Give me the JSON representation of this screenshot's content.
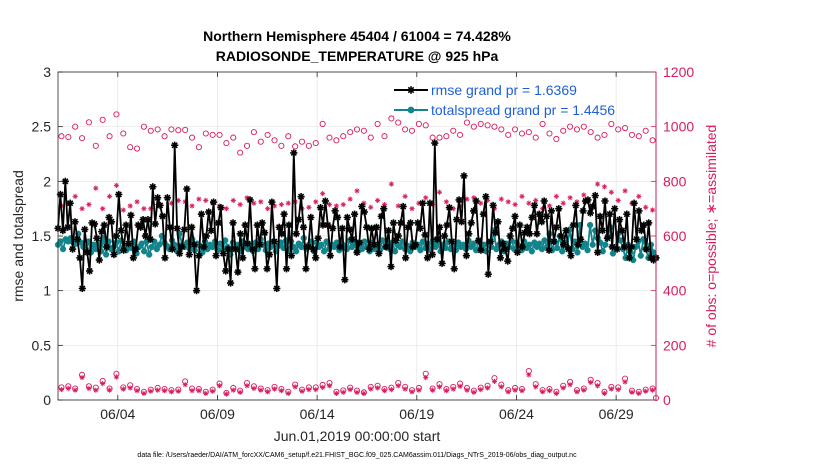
{
  "chart_data": {
    "type": "line",
    "title": "Northern Hemisphere 45404 / 61004 = 74.428%",
    "subtitle": "RADIOSONDE_TEMPERATURE @ 925 hPa",
    "xlabel": "Jun.01,2019 00:00:00 start",
    "ylabel": "rmse and totalspread",
    "ylabel_right": "# of obs: o=possible; ∗=assimilated",
    "footer": "data file: /Users/raeder/DAI/ATM_forcXX/CAM6_setup/f.e21.FHIST_BGC.f09_025.CAM6assim.011/Diags_NTrS_2019-06/obs_diag_output.nc",
    "x_range": [
      1.0,
      31.0
    ],
    "ylim": [
      0,
      3
    ],
    "ylim_right": [
      0,
      1200
    ],
    "x_ticks": [
      4,
      9,
      14,
      19,
      24,
      29
    ],
    "x_tick_labels": [
      "06/04",
      "06/09",
      "06/14",
      "06/19",
      "06/24",
      "06/29"
    ],
    "y_ticks": [
      0,
      0.5,
      1,
      1.5,
      2,
      2.5,
      3
    ],
    "y_tick_labels": [
      "0",
      "0.5",
      "1",
      "1.5",
      "2",
      "2.5",
      "3"
    ],
    "y_right_ticks": [
      0,
      200,
      400,
      600,
      800,
      1000,
      1200
    ],
    "y_right_tick_labels": [
      "0",
      "200",
      "400",
      "600",
      "800",
      "1000",
      "1200"
    ],
    "grid": true,
    "legend_position": "top-right",
    "series": [
      {
        "name": "rmse grand pr = 1.6369",
        "color": "#000000",
        "marker": "asterisk",
        "values": [
          1.57,
          1.88,
          1.55,
          2.0,
          1.58,
          1.8,
          1.38,
          1.63,
          1.47,
          1.3,
          1.02,
          1.56,
          1.35,
          1.18,
          1.62,
          1.61,
          1.48,
          1.28,
          1.54,
          1.6,
          1.4,
          1.67,
          1.63,
          1.33,
          1.5,
          1.88,
          1.55,
          1.37,
          1.6,
          1.43,
          1.69,
          1.3,
          1.38,
          1.6,
          1.58,
          1.65,
          1.5,
          1.65,
          1.47,
          1.95,
          1.61,
          1.85,
          1.78,
          1.68,
          1.3,
          1.85,
          1.58,
          1.38,
          2.33,
          1.57,
          1.34,
          1.4,
          1.56,
          1.93,
          1.33,
          1.58,
          1.42,
          1.0,
          1.32,
          1.7,
          1.4,
          1.5,
          1.72,
          1.55,
          1.81,
          1.32,
          1.62,
          1.76,
          1.34,
          1.18,
          1.38,
          1.07,
          1.62,
          1.38,
          1.17,
          1.52,
          1.3,
          1.6,
          1.43,
          1.83,
          1.38,
          1.2,
          1.6,
          1.42,
          1.62,
          1.53,
          1.2,
          1.33,
          1.81,
          1.45,
          1.02,
          1.58,
          1.52,
          1.7,
          1.2,
          1.6,
          1.32,
          2.26,
          1.52,
          1.65,
          1.86,
          1.58,
          1.2,
          1.4,
          1.67,
          1.38,
          1.3,
          1.48,
          1.76,
          1.6,
          1.82,
          1.6,
          1.32,
          1.57,
          1.73,
          1.67,
          1.4,
          1.57,
          1.1,
          1.67,
          1.56,
          1.47,
          1.7,
          1.35,
          1.44,
          1.77,
          1.72,
          1.58,
          1.38,
          1.57,
          1.42,
          1.58,
          1.34,
          1.68,
          1.75,
          1.4,
          1.55,
          1.22,
          1.62,
          1.46,
          1.5,
          1.62,
          1.77,
          1.3,
          1.58,
          1.62,
          1.4,
          1.42,
          1.62,
          1.57,
          1.8,
          1.51,
          1.3,
          1.8,
          1.33,
          2.35,
          1.47,
          1.58,
          1.25,
          1.5,
          1.6,
          1.76,
          1.45,
          1.2,
          1.65,
          1.83,
          1.63,
          2.05,
          1.32,
          1.52,
          1.62,
          1.73,
          1.82,
          1.46,
          1.37,
          1.7,
          1.86,
          1.15,
          1.45,
          1.78,
          1.53,
          1.63,
          1.3,
          1.43,
          1.38,
          1.27,
          1.5,
          1.57,
          1.68,
          1.35,
          1.6,
          1.4,
          1.53,
          1.58,
          1.52,
          1.67,
          1.78,
          1.52,
          1.7,
          1.63,
          1.82,
          1.68,
          1.37,
          1.73,
          1.45,
          1.58,
          1.75,
          1.5,
          1.42,
          1.55,
          1.38,
          1.32,
          1.6,
          1.78,
          1.42,
          1.47,
          1.73,
          1.82,
          1.83,
          1.71,
          1.77,
          1.87,
          1.35,
          1.68,
          1.55,
          1.82,
          1.48,
          1.7,
          1.4,
          1.75,
          1.38,
          1.65,
          1.55,
          1.4,
          1.7,
          1.3,
          1.4,
          1.8,
          1.47,
          1.73,
          1.55,
          1.6,
          1.38,
          1.62,
          1.3,
          1.28,
          1.3
        ]
      },
      {
        "name": "totalspread grand pr = 1.4456",
        "color": "#12858c",
        "marker": "circle",
        "values": [
          1.42,
          1.45,
          1.38,
          1.47,
          1.45,
          1.48,
          1.44,
          1.43,
          1.52,
          1.44,
          1.4,
          1.38,
          1.45,
          1.35,
          1.42,
          1.38,
          1.44,
          1.36,
          1.48,
          1.33,
          1.45,
          1.38,
          1.4,
          1.44,
          1.36,
          1.46,
          1.4,
          1.37,
          1.41,
          1.39,
          1.45,
          1.34,
          1.4,
          1.43,
          1.36,
          1.45,
          1.33,
          1.4,
          1.45,
          1.38,
          1.42,
          1.5,
          1.44,
          1.41,
          1.38,
          1.46,
          1.42,
          1.36,
          1.52,
          1.42,
          1.4,
          1.44,
          1.38,
          1.47,
          1.37,
          1.43,
          1.41,
          1.35,
          1.45,
          1.38,
          1.42,
          1.4,
          1.45,
          1.37,
          1.43,
          1.38,
          1.46,
          1.4,
          1.33,
          1.44,
          1.39,
          1.42,
          1.36,
          1.45,
          1.4,
          1.38,
          1.42,
          1.36,
          1.44,
          1.38,
          1.47,
          1.42,
          1.37,
          1.43,
          1.4,
          1.45,
          1.36,
          1.41,
          1.44,
          1.39,
          1.46,
          1.37,
          1.45,
          1.4,
          1.36,
          1.43,
          1.4,
          1.48,
          1.38,
          1.42,
          1.45,
          1.36,
          1.44,
          1.4,
          1.42,
          1.36,
          1.45,
          1.38,
          1.42,
          1.4,
          1.44,
          1.37,
          1.43,
          1.41,
          1.38,
          1.46,
          1.4,
          1.44,
          1.36,
          1.42,
          1.38,
          1.45,
          1.4,
          1.36,
          1.44,
          1.38,
          1.42,
          1.37,
          1.46,
          1.4,
          1.43,
          1.38,
          1.44,
          1.36,
          1.42,
          1.4,
          1.45,
          1.38,
          1.41,
          1.36,
          1.44,
          1.4,
          1.42,
          1.37,
          1.45,
          1.39,
          1.43,
          1.38,
          1.46,
          1.4,
          1.44,
          1.36,
          1.42,
          1.39,
          1.45,
          1.38,
          1.41,
          1.37,
          1.44,
          1.4,
          1.42,
          1.38,
          1.46,
          1.4,
          1.43,
          1.37,
          1.45,
          1.39,
          1.42,
          1.36,
          1.44,
          1.4,
          1.55,
          1.38,
          1.42,
          1.45,
          1.36,
          1.43,
          1.4,
          1.46,
          1.38,
          1.44,
          1.41,
          1.37,
          1.45,
          1.39,
          1.42,
          1.36,
          1.44,
          1.4,
          1.43,
          1.38,
          1.46,
          1.4,
          1.52,
          1.37,
          1.45,
          1.39,
          1.5,
          1.36,
          1.44,
          1.4,
          1.56,
          1.38,
          1.45,
          1.35,
          1.6,
          1.4,
          1.43,
          1.37,
          1.6,
          1.42,
          1.55,
          1.48,
          1.44,
          1.36,
          1.42,
          1.5,
          1.58,
          1.34,
          1.4,
          1.52,
          1.46,
          1.38,
          1.3,
          1.42,
          1.35,
          1.28,
          1.4,
          1.45,
          1.32,
          1.47,
          1.38,
          1.3,
          1.42,
          1.35,
          1.3
        ]
      }
    ],
    "obs_possible_upper": [
      965,
      962,
      1000,
      958,
      1016,
      930,
      1025,
      965,
      1045,
      975,
      925,
      920,
      1000,
      985,
      990,
      965,
      990,
      987,
      988,
      960,
      925,
      975,
      970,
      970,
      940,
      960,
      905,
      930,
      980,
      945,
      970,
      950,
      930,
      965,
      928,
      945,
      930,
      940,
      1010,
      960,
      950,
      965,
      980,
      990,
      985,
      960,
      1010,
      965,
      1030,
      1015,
      990,
      985,
      1010,
      1005,
      960,
      960,
      965,
      985,
      970,
      1015,
      1000,
      1010,
      1005,
      1000,
      990,
      970,
      990,
      975,
      980,
      960,
      1010,
      975,
      955,
      985,
      1000,
      990,
      1000,
      980,
      960,
      970,
      1010,
      990,
      995,
      970,
      965,
      985,
      950
    ],
    "obs_assimilated_upper": [
      710,
      720,
      745,
      700,
      715,
      775,
      700,
      745,
      785,
      695,
      710,
      725,
      700,
      700,
      715,
      675,
      720,
      730,
      725,
      710,
      735,
      730,
      720,
      710,
      700,
      730,
      715,
      740,
      720,
      725,
      700,
      710,
      715,
      720,
      725,
      700,
      705,
      725,
      755,
      715,
      710,
      715,
      735,
      765,
      720,
      705,
      730,
      715,
      790,
      710,
      745,
      700,
      720,
      740,
      715,
      760,
      725,
      700,
      710,
      735,
      740,
      720,
      730,
      700,
      735,
      725,
      715,
      745,
      720,
      730,
      700,
      710,
      745,
      720,
      740,
      725,
      750,
      710,
      790,
      780,
      760,
      730,
      765,
      720,
      745,
      705,
      695
    ],
    "obs_possible_lower": [
      46,
      50,
      42,
      92,
      50,
      45,
      70,
      42,
      96,
      46,
      54,
      40,
      30,
      38,
      44,
      40,
      36,
      38,
      68,
      42,
      40,
      30,
      38,
      60,
      26,
      44,
      34,
      62,
      50,
      42,
      36,
      48,
      40,
      30,
      56,
      38,
      46,
      46,
      55,
      62,
      30,
      35,
      45,
      34,
      28,
      48,
      52,
      40,
      45,
      62,
      48,
      36,
      44,
      96,
      42,
      58,
      40,
      48,
      60,
      44,
      34,
      45,
      52,
      80,
      56,
      36,
      44,
      40,
      106,
      58,
      36,
      40,
      30,
      52,
      66,
      36,
      42,
      74,
      62,
      30,
      48,
      46,
      78,
      34,
      30,
      38,
      42
    ],
    "obs_assimilated_lower": [
      38,
      42,
      36,
      82,
      42,
      36,
      60,
      36,
      84,
      40,
      44,
      34,
      24,
      32,
      36,
      34,
      30,
      32,
      56,
      34,
      34,
      24,
      32,
      52,
      22,
      36,
      28,
      52,
      42,
      36,
      30,
      40,
      34,
      24,
      48,
      32,
      38,
      38,
      46,
      52,
      24,
      28,
      38,
      28,
      24,
      40,
      44,
      34,
      38,
      52,
      40,
      30,
      36,
      82,
      36,
      48,
      34,
      40,
      50,
      36,
      28,
      38,
      44,
      68,
      48,
      30,
      36,
      34,
      92,
      48,
      30,
      34,
      24,
      44,
      56,
      30,
      36,
      64,
      52,
      24,
      40,
      38,
      66,
      28,
      24,
      32,
      36
    ]
  }
}
